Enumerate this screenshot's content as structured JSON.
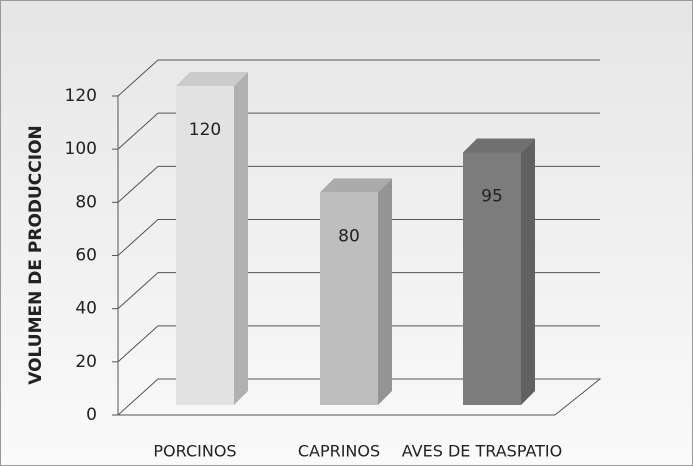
{
  "chart_data": {
    "type": "bar3d",
    "y_label": "VOLUMEN DE PRODUCCION",
    "categories": [
      "PORCINOS",
      "CAPRINOS",
      "AVES DE TRASPATIO"
    ],
    "values": [
      120,
      80,
      95
    ],
    "colors": [
      "#e2e2e2",
      "#bebebe",
      "#7c7c7c"
    ],
    "ylim": [
      0,
      120
    ],
    "yticks": [
      0,
      20,
      40,
      60,
      80,
      100,
      120
    ],
    "grid": true
  }
}
